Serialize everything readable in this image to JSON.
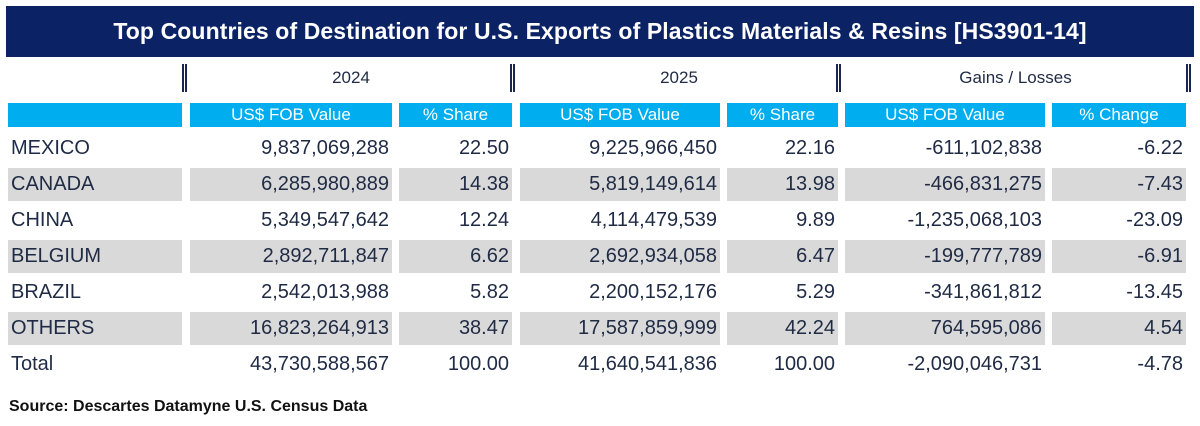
{
  "title": "Top Countries of Destination for U.S. Exports of  Plastics Materials & Resins  [HS3901-14]",
  "groups": [
    "2024",
    "2025",
    "Gains / Losses"
  ],
  "chart_data": {
    "type": "table",
    "columns": [
      "US$ FOB Value",
      "% Share",
      "US$ FOB Value",
      "% Share",
      "US$ FOB Value",
      "% Change"
    ],
    "rows": [
      {
        "country": "MEXICO",
        "values": [
          "9,837,069,288",
          "22.50",
          "9,225,966,450",
          "22.16",
          "-611,102,838",
          "-6.22"
        ]
      },
      {
        "country": "CANADA",
        "values": [
          "6,285,980,889",
          "14.38",
          "5,819,149,614",
          "13.98",
          "-466,831,275",
          "-7.43"
        ]
      },
      {
        "country": "CHINA",
        "values": [
          "5,349,547,642",
          "12.24",
          "4,114,479,539",
          "9.89",
          "-1,235,068,103",
          "-23.09"
        ]
      },
      {
        "country": "BELGIUM",
        "values": [
          "2,892,711,847",
          "6.62",
          "2,692,934,058",
          "6.47",
          "-199,777,789",
          "-6.91"
        ]
      },
      {
        "country": "BRAZIL",
        "values": [
          "2,542,013,988",
          "5.82",
          "2,200,152,176",
          "5.29",
          "-341,861,812",
          "-13.45"
        ]
      },
      {
        "country": "OTHERS",
        "values": [
          "16,823,264,913",
          "38.47",
          "17,587,859,999",
          "42.24",
          "764,595,086",
          "4.54"
        ]
      },
      {
        "country": "Total",
        "values": [
          "43,730,588,567",
          "100.00",
          "41,640,541,836",
          "100.00",
          "-2,090,046,731",
          "-4.78"
        ]
      }
    ]
  },
  "source": "Source: Descartes Datamyne U.S. Census Data",
  "colors": {
    "title_bg": "#0b2265",
    "header_bg": "#00aeef",
    "row_shade": "#d9d9d9"
  }
}
